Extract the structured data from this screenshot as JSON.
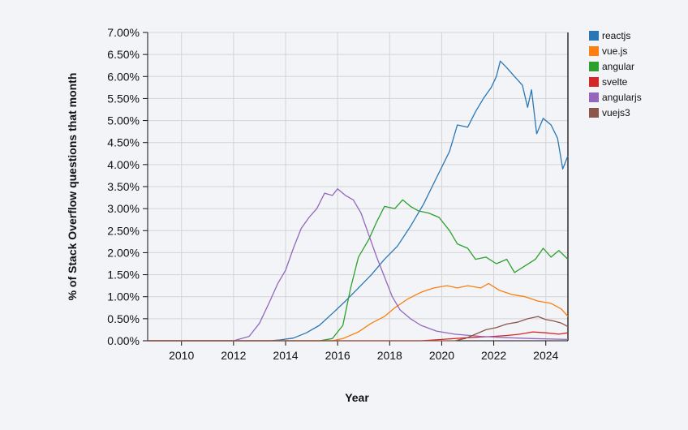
{
  "chart_data": {
    "type": "line",
    "xlabel": "Year",
    "ylabel": "% of Stack Overflow questions that month",
    "xlim": [
      2008.7,
      2024.85
    ],
    "ylim": [
      0,
      7
    ],
    "x_ticks": [
      2010,
      2012,
      2014,
      2016,
      2018,
      2020,
      2022,
      2024
    ],
    "y_ticks": [
      "0.00%",
      "0.50%",
      "1.00%",
      "1.50%",
      "2.00%",
      "2.50%",
      "3.00%",
      "3.50%",
      "4.00%",
      "4.50%",
      "5.00%",
      "5.50%",
      "6.00%",
      "6.50%",
      "7.00%"
    ],
    "grid": true,
    "legend_position": "top-right",
    "series": [
      {
        "name": "reactjs",
        "color": "#2a77b4",
        "points": [
          [
            2013.4,
            0
          ],
          [
            2013.8,
            0.02
          ],
          [
            2014.3,
            0.06
          ],
          [
            2014.8,
            0.18
          ],
          [
            2015.3,
            0.35
          ],
          [
            2015.8,
            0.62
          ],
          [
            2016.3,
            0.9
          ],
          [
            2016.8,
            1.2
          ],
          [
            2017.3,
            1.5
          ],
          [
            2017.8,
            1.85
          ],
          [
            2018.3,
            2.15
          ],
          [
            2018.8,
            2.6
          ],
          [
            2019.3,
            3.1
          ],
          [
            2019.8,
            3.7
          ],
          [
            2020.3,
            4.3
          ],
          [
            2020.6,
            4.9
          ],
          [
            2021.0,
            4.85
          ],
          [
            2021.3,
            5.2
          ],
          [
            2021.6,
            5.5
          ],
          [
            2021.9,
            5.75
          ],
          [
            2022.1,
            6.0
          ],
          [
            2022.25,
            6.35
          ],
          [
            2022.5,
            6.2
          ],
          [
            2022.8,
            6.0
          ],
          [
            2023.1,
            5.8
          ],
          [
            2023.3,
            5.3
          ],
          [
            2023.45,
            5.7
          ],
          [
            2023.65,
            4.7
          ],
          [
            2023.9,
            5.05
          ],
          [
            2024.2,
            4.9
          ],
          [
            2024.45,
            4.6
          ],
          [
            2024.65,
            3.9
          ],
          [
            2024.85,
            4.2
          ]
        ]
      },
      {
        "name": "vue.js",
        "color": "#fd7f0f",
        "points": [
          [
            2015.8,
            0
          ],
          [
            2016.2,
            0.05
          ],
          [
            2016.8,
            0.2
          ],
          [
            2017.3,
            0.4
          ],
          [
            2017.8,
            0.55
          ],
          [
            2018.2,
            0.75
          ],
          [
            2018.7,
            0.95
          ],
          [
            2019.2,
            1.1
          ],
          [
            2019.7,
            1.2
          ],
          [
            2020.2,
            1.25
          ],
          [
            2020.6,
            1.2
          ],
          [
            2021.0,
            1.25
          ],
          [
            2021.5,
            1.2
          ],
          [
            2021.8,
            1.3
          ],
          [
            2022.2,
            1.15
          ],
          [
            2022.7,
            1.05
          ],
          [
            2023.2,
            1.0
          ],
          [
            2023.7,
            0.9
          ],
          [
            2024.2,
            0.85
          ],
          [
            2024.6,
            0.72
          ],
          [
            2024.85,
            0.55
          ]
        ]
      },
      {
        "name": "angular",
        "color": "#2ca02c",
        "points": [
          [
            2015.3,
            0
          ],
          [
            2015.8,
            0.05
          ],
          [
            2016.2,
            0.35
          ],
          [
            2016.5,
            1.2
          ],
          [
            2016.8,
            1.9
          ],
          [
            2017.2,
            2.3
          ],
          [
            2017.5,
            2.7
          ],
          [
            2017.8,
            3.05
          ],
          [
            2018.2,
            3.0
          ],
          [
            2018.5,
            3.2
          ],
          [
            2018.8,
            3.05
          ],
          [
            2019.1,
            2.95
          ],
          [
            2019.5,
            2.9
          ],
          [
            2019.9,
            2.8
          ],
          [
            2020.3,
            2.5
          ],
          [
            2020.6,
            2.2
          ],
          [
            2021.0,
            2.1
          ],
          [
            2021.3,
            1.85
          ],
          [
            2021.7,
            1.9
          ],
          [
            2022.1,
            1.75
          ],
          [
            2022.5,
            1.85
          ],
          [
            2022.8,
            1.55
          ],
          [
            2023.2,
            1.7
          ],
          [
            2023.6,
            1.85
          ],
          [
            2023.9,
            2.1
          ],
          [
            2024.2,
            1.9
          ],
          [
            2024.5,
            2.05
          ],
          [
            2024.85,
            1.85
          ]
        ]
      },
      {
        "name": "svelte",
        "color": "#d62728",
        "points": [
          [
            2019.2,
            0
          ],
          [
            2020.0,
            0.03
          ],
          [
            2021.0,
            0.07
          ],
          [
            2022.0,
            0.1
          ],
          [
            2022.5,
            0.12
          ],
          [
            2023.0,
            0.15
          ],
          [
            2023.5,
            0.2
          ],
          [
            2024.0,
            0.18
          ],
          [
            2024.5,
            0.15
          ],
          [
            2024.85,
            0.18
          ]
        ]
      },
      {
        "name": "angularjs",
        "color": "#9467bd",
        "points": [
          [
            2012.0,
            0
          ],
          [
            2012.6,
            0.1
          ],
          [
            2013.0,
            0.4
          ],
          [
            2013.4,
            0.9
          ],
          [
            2013.7,
            1.3
          ],
          [
            2014.0,
            1.6
          ],
          [
            2014.3,
            2.1
          ],
          [
            2014.6,
            2.55
          ],
          [
            2014.9,
            2.8
          ],
          [
            2015.2,
            3.0
          ],
          [
            2015.5,
            3.35
          ],
          [
            2015.8,
            3.3
          ],
          [
            2016.0,
            3.45
          ],
          [
            2016.3,
            3.3
          ],
          [
            2016.6,
            3.2
          ],
          [
            2016.9,
            2.9
          ],
          [
            2017.2,
            2.4
          ],
          [
            2017.5,
            1.9
          ],
          [
            2017.8,
            1.45
          ],
          [
            2018.1,
            1.0
          ],
          [
            2018.4,
            0.7
          ],
          [
            2018.8,
            0.5
          ],
          [
            2019.2,
            0.35
          ],
          [
            2019.8,
            0.22
          ],
          [
            2020.5,
            0.15
          ],
          [
            2021.5,
            0.1
          ],
          [
            2022.5,
            0.07
          ],
          [
            2023.5,
            0.05
          ],
          [
            2024.85,
            0.03
          ]
        ]
      },
      {
        "name": "vuejs3",
        "color": "#8c564b",
        "points": [
          [
            2020.5,
            0
          ],
          [
            2020.9,
            0.05
          ],
          [
            2021.3,
            0.15
          ],
          [
            2021.7,
            0.25
          ],
          [
            2022.1,
            0.3
          ],
          [
            2022.5,
            0.38
          ],
          [
            2022.9,
            0.42
          ],
          [
            2023.3,
            0.5
          ],
          [
            2023.7,
            0.55
          ],
          [
            2024.0,
            0.48
          ],
          [
            2024.3,
            0.45
          ],
          [
            2024.6,
            0.4
          ],
          [
            2024.85,
            0.32
          ]
        ]
      }
    ]
  }
}
